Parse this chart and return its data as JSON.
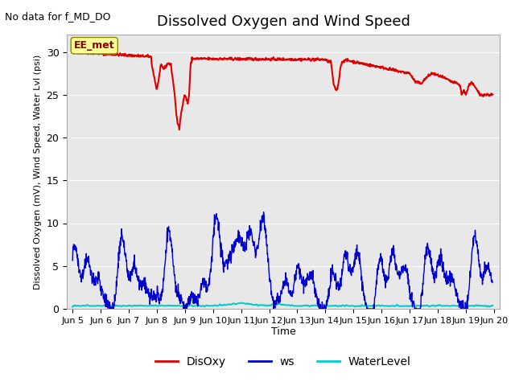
{
  "title": "Dissolved Oxygen and Wind Speed",
  "subtitle": "No data for f_MD_DO",
  "ylabel": "Dissolved Oxygen (mV), Wind Speed, Water Lvl (psi)",
  "xlabel": "Time",
  "xlim": [
    4.8,
    20.2
  ],
  "ylim": [
    0,
    32
  ],
  "yticks": [
    0,
    5,
    10,
    15,
    20,
    25,
    30
  ],
  "xtick_labels": [
    "Jun 5",
    "Jun 6",
    "Jun 7",
    "Jun 8",
    "Jun 9",
    "Jun 10",
    "Jun 11",
    "Jun 12",
    "Jun 13",
    "Jun 14",
    "Jun 15",
    "Jun 16",
    "Jun 17",
    "Jun 18",
    "Jun 19",
    "Jun 20"
  ],
  "xtick_positions": [
    5,
    6,
    7,
    8,
    9,
    10,
    11,
    12,
    13,
    14,
    15,
    16,
    17,
    18,
    19,
    20
  ],
  "annotation_text": "EE_met",
  "plot_bg_color": "#e8e8e8",
  "disoxy_color": "#dd0000",
  "ws_color": "#0000cc",
  "wl_color": "#00cccc",
  "legend_labels": [
    "DisOxy",
    "ws",
    "WaterLevel"
  ]
}
